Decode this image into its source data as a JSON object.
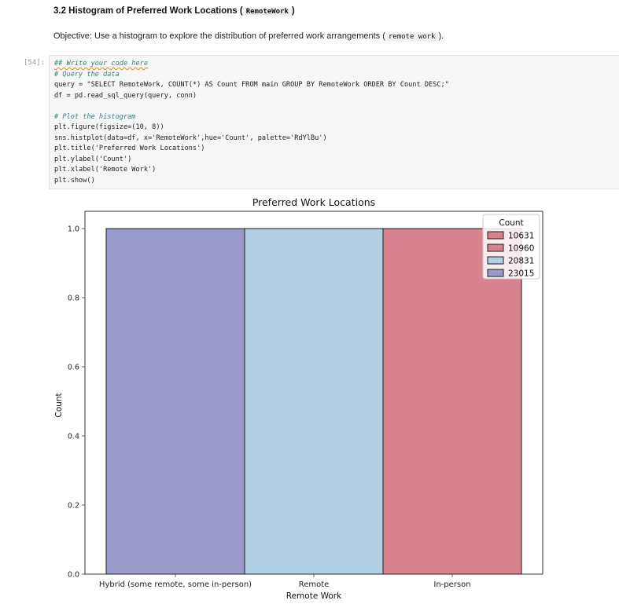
{
  "section": {
    "heading_prefix": "3.2 Histogram of Preferred Work Locations (",
    "heading_code": "RemoteWork",
    "heading_suffix": ")",
    "objective_prefix": "Objective: Use a histogram to explore the distribution of preferred work arrangements (",
    "objective_code": "remote work",
    "objective_suffix": ")."
  },
  "cell": {
    "prompt": "[54]:",
    "lines": [
      "## Write your code here",
      "# Query the data",
      "query = \"SELECT RemoteWork, COUNT(*) AS Count FROM main GROUP BY RemoteWork ORDER BY Count DESC;\"",
      "df = pd.read_sql_query(query, conn)",
      "",
      "# Plot the histogram",
      "plt.figure(figsize=(10, 8))",
      "sns.histplot(data=df, x='RemoteWork',hue='Count', palette='RdYlBu')",
      "plt.title('Preferred Work Locations')",
      "plt.ylabel('Count')",
      "plt.xlabel('Remote Work')",
      "plt.show()"
    ]
  },
  "chart_data": {
    "type": "bar",
    "title": "Preferred Work Locations",
    "xlabel": "Remote Work",
    "ylabel": "Count",
    "categories": [
      "Hybrid (some remote, some in-person)",
      "Remote",
      "In-person"
    ],
    "values": [
      1.0,
      1.0,
      1.0
    ],
    "bar_hue": [
      "23015",
      "20831",
      "10631"
    ],
    "ylim": [
      0,
      1.0
    ],
    "yticks": [
      "0.0",
      "0.2",
      "0.4",
      "0.6",
      "0.8",
      "1.0"
    ],
    "grid": false,
    "legend": {
      "title": "Count",
      "placement": "top-right",
      "entries": [
        "10631",
        "10960",
        "20831",
        "23015"
      ]
    },
    "colors": {
      "10631": "#d7828f",
      "10960": "#d7828f",
      "20831": "#b3cfe4",
      "23015": "#999ac9"
    }
  }
}
